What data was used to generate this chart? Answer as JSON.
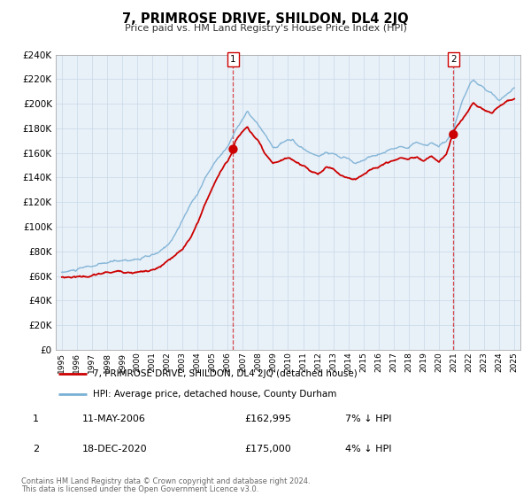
{
  "title": "7, PRIMROSE DRIVE, SHILDON, DL4 2JQ",
  "subtitle": "Price paid vs. HM Land Registry's House Price Index (HPI)",
  "background_color": "#ffffff",
  "grid_color": "#c8d8e8",
  "plot_bg": "#e8f0f8",
  "hpi_color": "#7ab0d4",
  "price_color": "#cc0000",
  "ylim": [
    0,
    240000
  ],
  "ytick_step": 20000,
  "xmin": 1994.6,
  "xmax": 2025.4,
  "marker1_x": 2006.36,
  "marker1_y": 162995,
  "marker2_x": 2020.96,
  "marker2_y": 175000,
  "legend_label1": "7, PRIMROSE DRIVE, SHILDON, DL4 2JQ (detached house)",
  "legend_label2": "HPI: Average price, detached house, County Durham",
  "ann1_label": "1",
  "ann1_date": "11-MAY-2006",
  "ann1_price": "£162,995",
  "ann1_pct": "7% ↓ HPI",
  "ann2_label": "2",
  "ann2_date": "18-DEC-2020",
  "ann2_price": "£175,000",
  "ann2_pct": "4% ↓ HPI",
  "footer1": "Contains HM Land Registry data © Crown copyright and database right 2024.",
  "footer2": "This data is licensed under the Open Government Licence v3.0.",
  "hpi_anchors": [
    [
      1995.0,
      63000
    ],
    [
      1995.5,
      64000
    ],
    [
      1996.0,
      65000
    ],
    [
      1996.5,
      66000
    ],
    [
      1997.0,
      67000
    ],
    [
      1997.5,
      68000
    ],
    [
      1998.0,
      69000
    ],
    [
      1998.5,
      70000
    ],
    [
      1999.0,
      71000
    ],
    [
      1999.5,
      72000
    ],
    [
      2000.0,
      73000
    ],
    [
      2000.5,
      74000
    ],
    [
      2001.0,
      75000
    ],
    [
      2001.5,
      77000
    ],
    [
      2002.0,
      82000
    ],
    [
      2002.5,
      92000
    ],
    [
      2003.0,
      103000
    ],
    [
      2003.5,
      115000
    ],
    [
      2004.0,
      125000
    ],
    [
      2004.5,
      138000
    ],
    [
      2005.0,
      148000
    ],
    [
      2005.5,
      158000
    ],
    [
      2006.0,
      165000
    ],
    [
      2006.3,
      172000
    ],
    [
      2006.5,
      178000
    ],
    [
      2007.0,
      188000
    ],
    [
      2007.3,
      193000
    ],
    [
      2007.5,
      190000
    ],
    [
      2008.0,
      182000
    ],
    [
      2008.5,
      172000
    ],
    [
      2009.0,
      162000
    ],
    [
      2009.3,
      163000
    ],
    [
      2009.5,
      165000
    ],
    [
      2010.0,
      167000
    ],
    [
      2010.3,
      168000
    ],
    [
      2010.5,
      164000
    ],
    [
      2011.0,
      160000
    ],
    [
      2011.5,
      157000
    ],
    [
      2012.0,
      154000
    ],
    [
      2012.5,
      158000
    ],
    [
      2013.0,
      158000
    ],
    [
      2013.5,
      154000
    ],
    [
      2014.0,
      153000
    ],
    [
      2014.5,
      150000
    ],
    [
      2015.0,
      153000
    ],
    [
      2015.5,
      156000
    ],
    [
      2016.0,
      158000
    ],
    [
      2016.5,
      160000
    ],
    [
      2017.0,
      162000
    ],
    [
      2017.5,
      165000
    ],
    [
      2018.0,
      167000
    ],
    [
      2018.3,
      170000
    ],
    [
      2018.5,
      170000
    ],
    [
      2019.0,
      168000
    ],
    [
      2019.5,
      170000
    ],
    [
      2020.0,
      168000
    ],
    [
      2020.5,
      172000
    ],
    [
      2021.0,
      182000
    ],
    [
      2021.3,
      193000
    ],
    [
      2021.5,
      200000
    ],
    [
      2022.0,
      213000
    ],
    [
      2022.3,
      218000
    ],
    [
      2022.5,
      215000
    ],
    [
      2023.0,
      210000
    ],
    [
      2023.5,
      207000
    ],
    [
      2024.0,
      203000
    ],
    [
      2024.5,
      208000
    ],
    [
      2025.0,
      213000
    ]
  ],
  "price_anchors": [
    [
      1995.0,
      59000
    ],
    [
      1995.5,
      59500
    ],
    [
      1996.0,
      60000
    ],
    [
      1996.5,
      60500
    ],
    [
      1997.0,
      61000
    ],
    [
      1997.5,
      62000
    ],
    [
      1998.0,
      63000
    ],
    [
      1998.5,
      63500
    ],
    [
      1999.0,
      64000
    ],
    [
      1999.5,
      64500
    ],
    [
      2000.0,
      65000
    ],
    [
      2000.5,
      65500
    ],
    [
      2001.0,
      66000
    ],
    [
      2001.5,
      68000
    ],
    [
      2002.0,
      72000
    ],
    [
      2002.5,
      76000
    ],
    [
      2003.0,
      80000
    ],
    [
      2003.5,
      90000
    ],
    [
      2004.0,
      102000
    ],
    [
      2004.5,
      118000
    ],
    [
      2005.0,
      132000
    ],
    [
      2005.5,
      145000
    ],
    [
      2006.0,
      153000
    ],
    [
      2006.36,
      162995
    ],
    [
      2006.5,
      170000
    ],
    [
      2007.0,
      178000
    ],
    [
      2007.3,
      182000
    ],
    [
      2007.5,
      178000
    ],
    [
      2008.0,
      170000
    ],
    [
      2008.5,
      157000
    ],
    [
      2009.0,
      148000
    ],
    [
      2009.5,
      151000
    ],
    [
      2010.0,
      153000
    ],
    [
      2010.5,
      150000
    ],
    [
      2011.0,
      147000
    ],
    [
      2011.5,
      143000
    ],
    [
      2012.0,
      140000
    ],
    [
      2012.5,
      145000
    ],
    [
      2013.0,
      145000
    ],
    [
      2013.5,
      140000
    ],
    [
      2014.0,
      138000
    ],
    [
      2014.5,
      137000
    ],
    [
      2015.0,
      142000
    ],
    [
      2015.5,
      146000
    ],
    [
      2016.0,
      148000
    ],
    [
      2016.5,
      151000
    ],
    [
      2017.0,
      153000
    ],
    [
      2017.5,
      155000
    ],
    [
      2018.0,
      154000
    ],
    [
      2018.5,
      157000
    ],
    [
      2019.0,
      154000
    ],
    [
      2019.5,
      157000
    ],
    [
      2020.0,
      152000
    ],
    [
      2020.5,
      158000
    ],
    [
      2020.96,
      175000
    ],
    [
      2021.0,
      177000
    ],
    [
      2021.5,
      185000
    ],
    [
      2022.0,
      195000
    ],
    [
      2022.3,
      200000
    ],
    [
      2022.5,
      197000
    ],
    [
      2023.0,
      195000
    ],
    [
      2023.5,
      191000
    ],
    [
      2024.0,
      197000
    ],
    [
      2024.5,
      202000
    ],
    [
      2025.0,
      204000
    ]
  ]
}
